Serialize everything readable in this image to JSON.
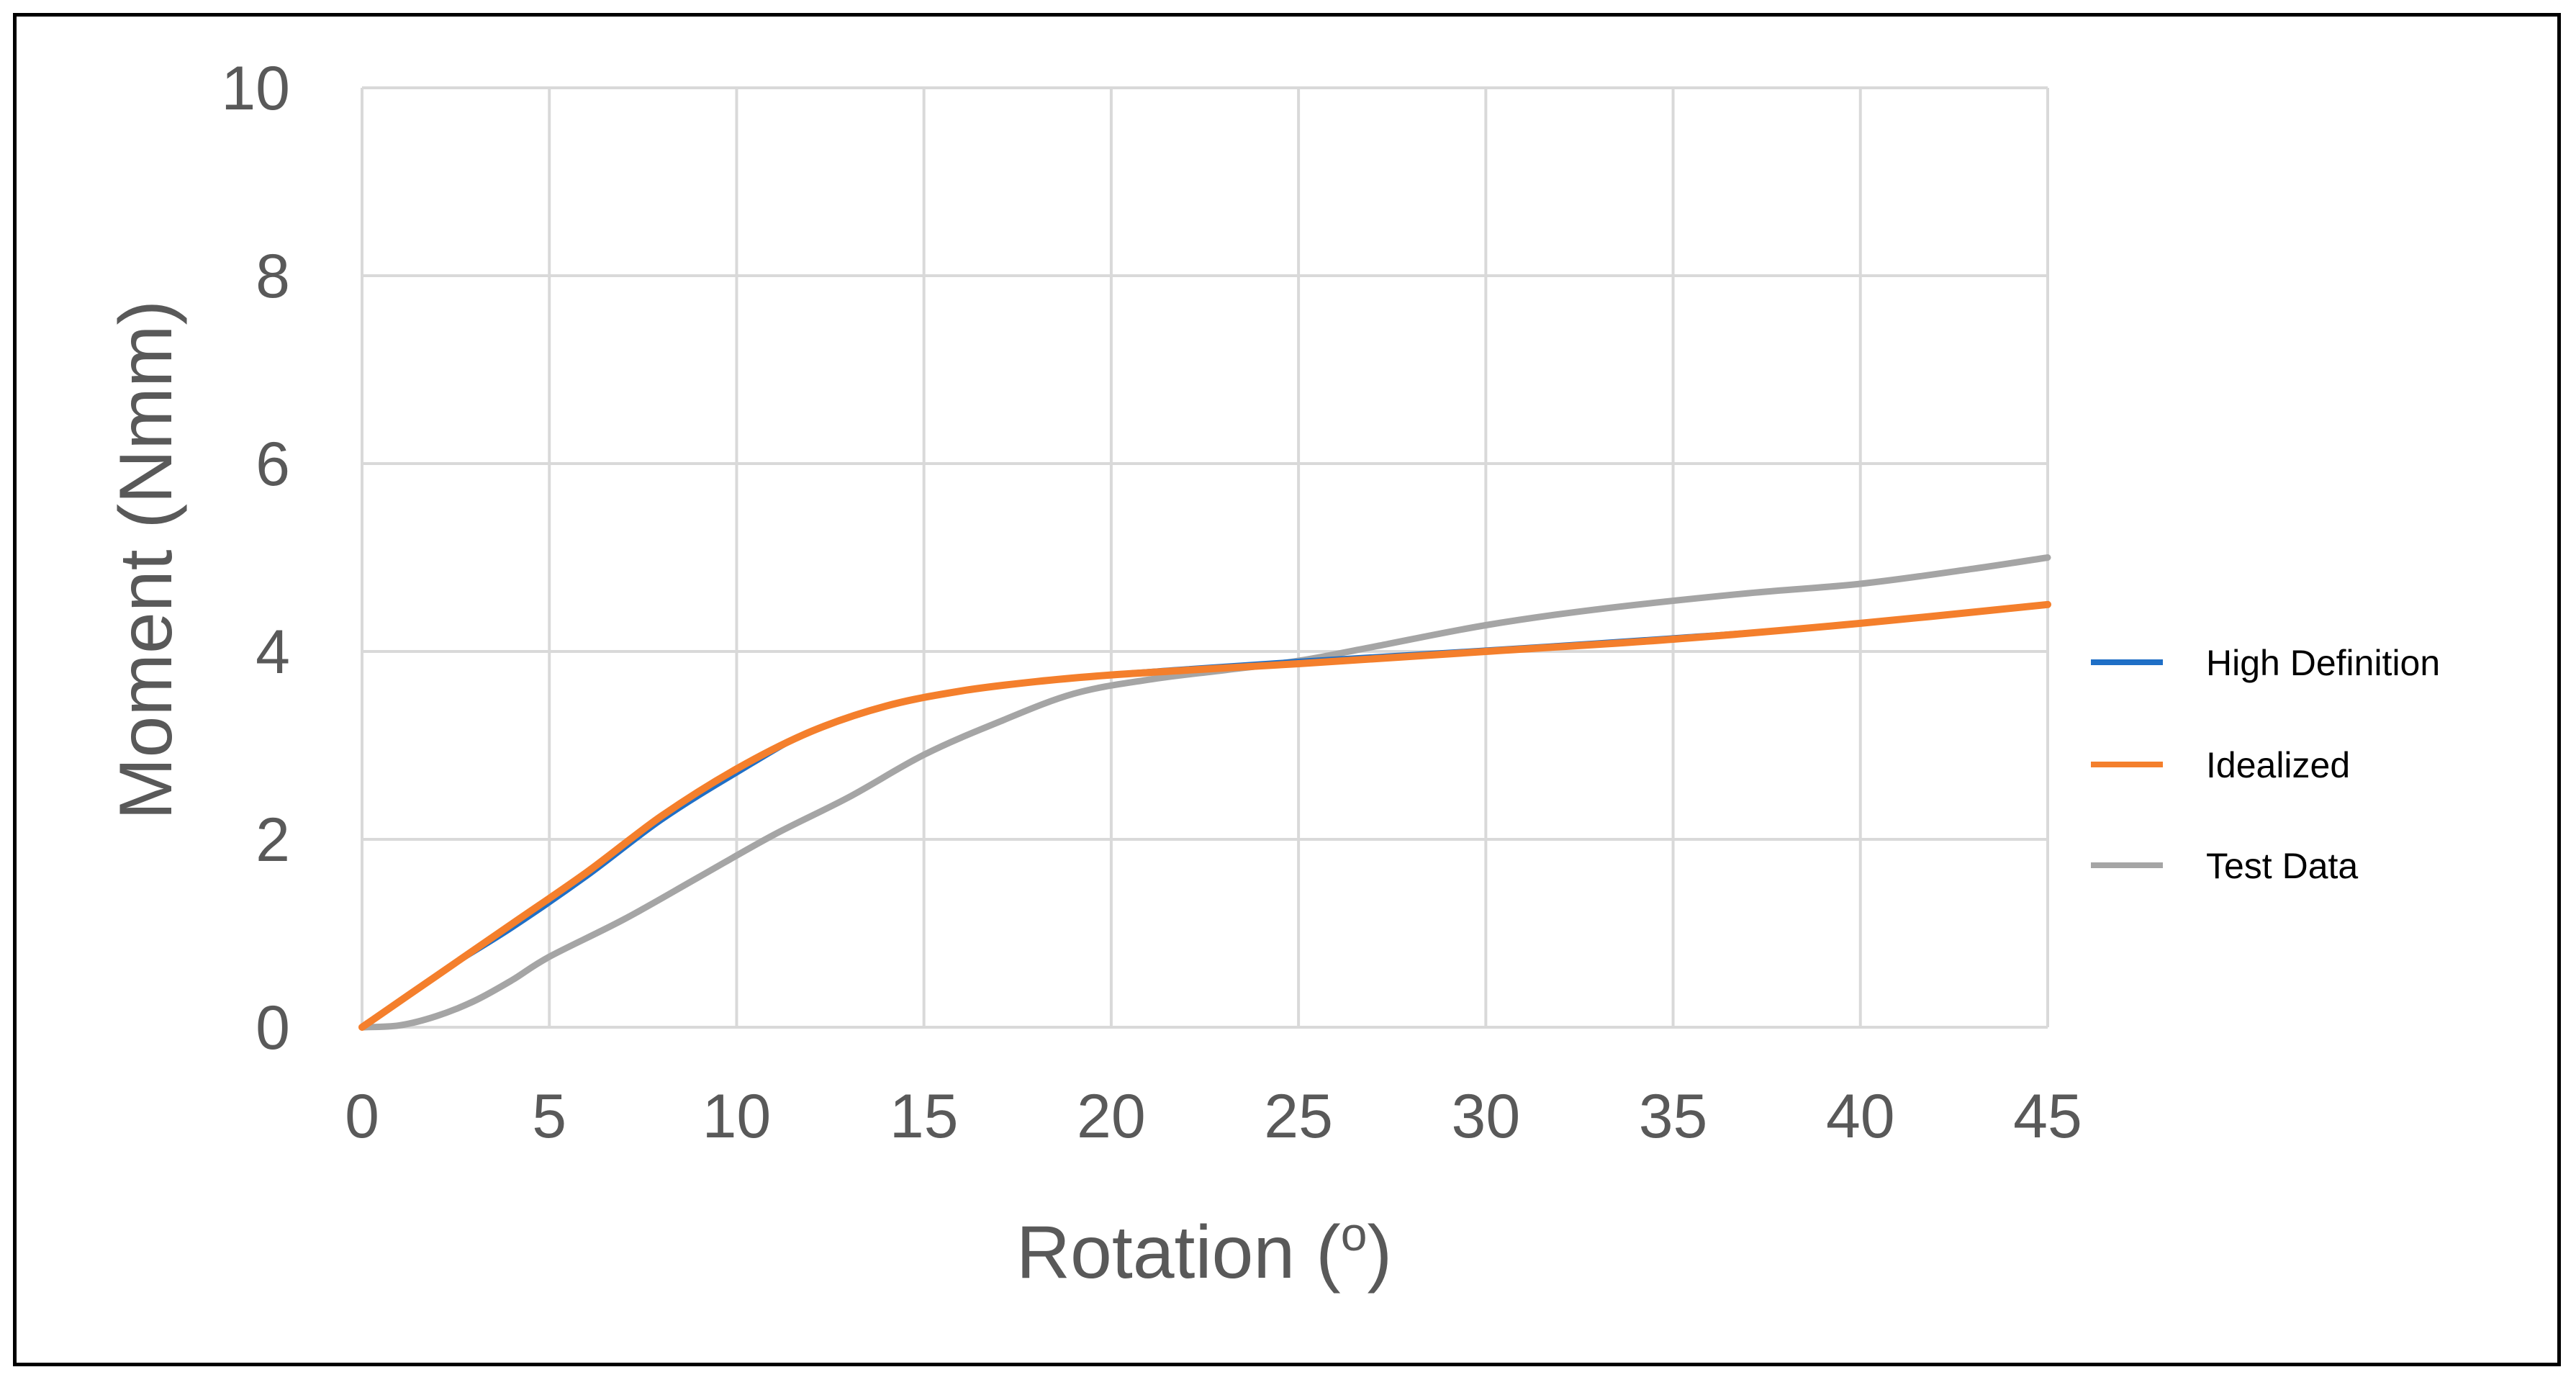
{
  "chart_data": {
    "type": "line",
    "title": "",
    "xlabel": "Rotation",
    "xlabel_superscript": "o",
    "ylabel": "Moment (Nmm)",
    "xlim": [
      0,
      45
    ],
    "ylim": [
      0,
      10
    ],
    "xticks": [
      0,
      5,
      10,
      15,
      20,
      25,
      30,
      35,
      40,
      45
    ],
    "yticks": [
      0,
      2,
      4,
      6,
      8,
      10
    ],
    "grid": true,
    "legend_position": "right",
    "series": [
      {
        "name": "High Definition",
        "color": "#1F6FC6",
        "x": [
          0,
          2,
          4,
          6,
          8,
          10,
          12,
          14,
          16,
          18,
          20,
          22,
          25,
          30,
          35,
          40,
          45
        ],
        "y": [
          0,
          0.55,
          1.05,
          1.6,
          2.2,
          2.7,
          3.15,
          3.42,
          3.58,
          3.68,
          3.76,
          3.82,
          3.9,
          4.02,
          4.15,
          4.3,
          4.5
        ]
      },
      {
        "name": "Idealized",
        "color": "#F47F2C",
        "x": [
          0,
          2,
          4,
          6,
          8,
          10,
          12,
          14,
          16,
          18,
          20,
          22,
          25,
          30,
          35,
          40,
          45
        ],
        "y": [
          0,
          0.55,
          1.1,
          1.65,
          2.25,
          2.75,
          3.15,
          3.42,
          3.58,
          3.68,
          3.75,
          3.8,
          3.87,
          4.0,
          4.13,
          4.3,
          4.5
        ]
      },
      {
        "name": "Test Data",
        "color": "#A5A5A5",
        "x": [
          0,
          1,
          2,
          3,
          4,
          5,
          7,
          9,
          11,
          13,
          15,
          17,
          19,
          21,
          23,
          25,
          27,
          30,
          33,
          37,
          40,
          43,
          45
        ],
        "y": [
          0,
          0.02,
          0.12,
          0.28,
          0.5,
          0.75,
          1.15,
          1.6,
          2.05,
          2.45,
          2.9,
          3.25,
          3.55,
          3.7,
          3.8,
          3.9,
          4.05,
          4.28,
          4.45,
          4.62,
          4.72,
          4.88,
          5.0
        ]
      }
    ]
  }
}
